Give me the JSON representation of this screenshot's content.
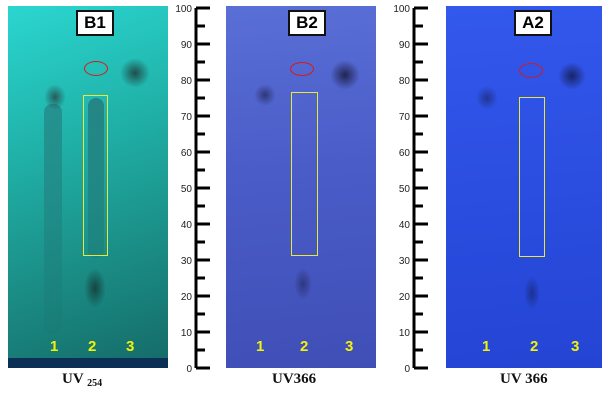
{
  "plates": [
    {
      "id": "b1",
      "label": "B1",
      "lanes": [
        "1",
        "2",
        "3"
      ],
      "caption_main": "UV",
      "caption_sub": "254"
    },
    {
      "id": "b2",
      "label": "B2",
      "lanes": [
        "1",
        "2",
        "3"
      ],
      "caption_main": "UV366",
      "caption_sub": ""
    },
    {
      "id": "a2",
      "label": "A2",
      "lanes": [
        "1",
        "2",
        "3"
      ],
      "caption_main": "UV 366",
      "caption_sub": ""
    }
  ],
  "ruler": {
    "ticks": [
      "100",
      "90",
      "80",
      "70",
      "60",
      "50",
      "40",
      "30",
      "20",
      "10",
      "0"
    ]
  },
  "colors": {
    "b1_plate": "#1fa8a0",
    "b2_plate": "#4a5cc8",
    "a2_plate": "#2b4ee0",
    "highlight_box": "#e8e83a",
    "circle_mark": "#d41a1a",
    "lane_number": "#f2f20a"
  }
}
